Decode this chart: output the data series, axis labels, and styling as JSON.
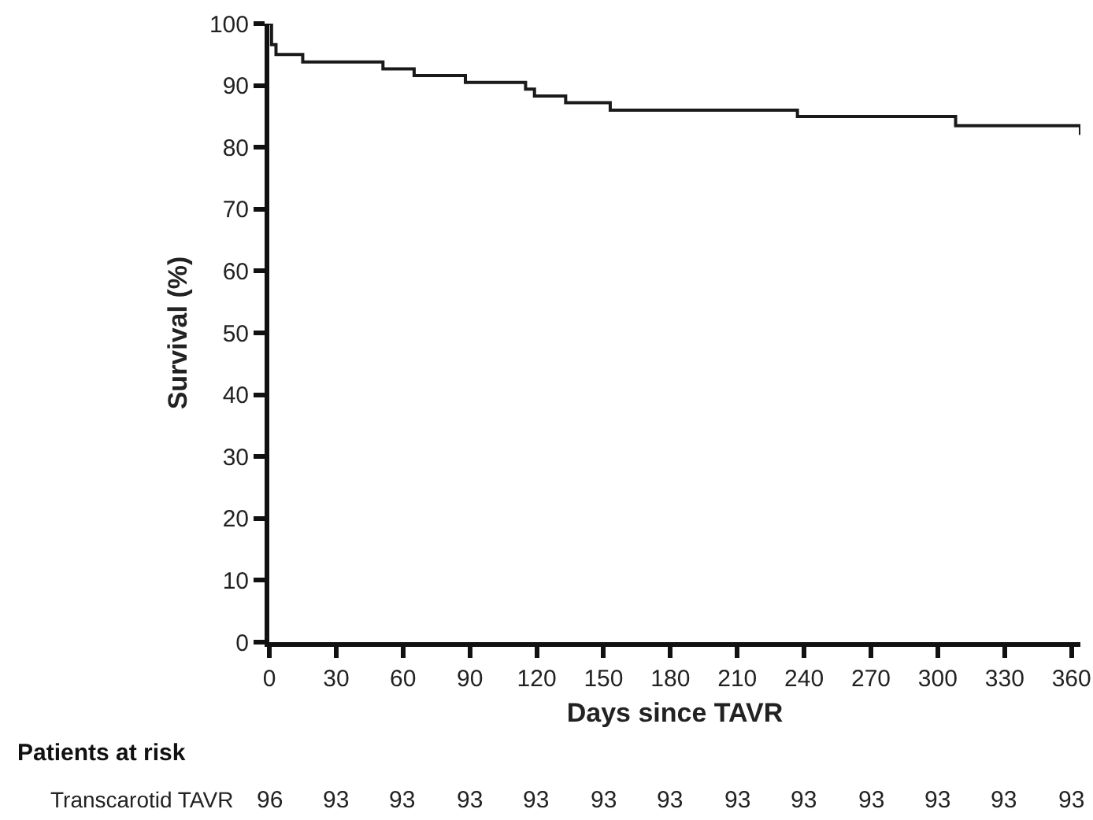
{
  "chart_data": {
    "type": "step",
    "xlabel": "Days since TAVR",
    "ylabel": "Survival (%)",
    "x": [
      0,
      1,
      3,
      15,
      51,
      65,
      88,
      115,
      119,
      133,
      153,
      237,
      308,
      364
    ],
    "values": [
      100,
      96.6,
      95,
      93.8,
      92.7,
      91.6,
      90.5,
      89.4,
      88.3,
      87.2,
      86,
      85,
      83.5,
      82
    ],
    "color": "#1a1a1a",
    "xlim": [
      0,
      364
    ],
    "ylim": [
      0,
      100
    ],
    "xticks": [
      0,
      30,
      60,
      90,
      120,
      150,
      180,
      210,
      240,
      270,
      300,
      330,
      360
    ],
    "yticks": [
      0,
      10,
      20,
      30,
      40,
      50,
      60,
      70,
      80,
      90,
      100
    ],
    "grid": false,
    "marker": "none",
    "line_style": "solid",
    "annotations": [
      "Patients at risk",
      "Transcarotid TAVR",
      "96",
      "93",
      "93",
      "93",
      "93",
      "93",
      "93",
      "93",
      "93",
      "93",
      "93",
      "93",
      "93"
    ]
  }
}
